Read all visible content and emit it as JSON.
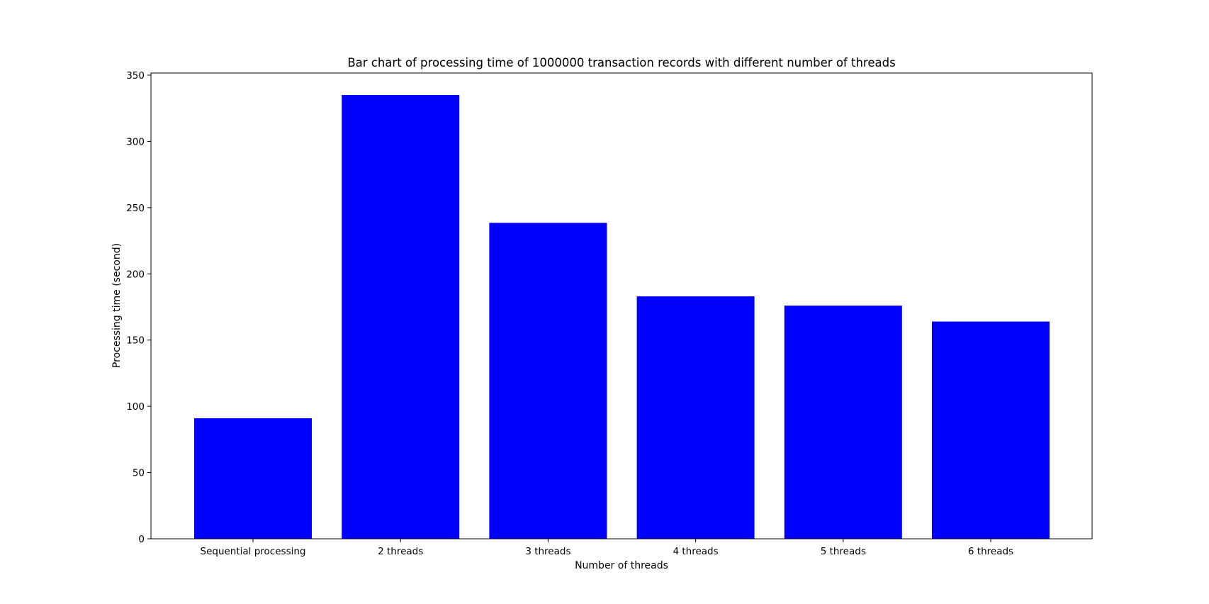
{
  "chart_data": {
    "type": "bar",
    "title": "Bar chart of processing time of 1000000 transaction records with different number of threads",
    "xlabel": "Number of threads",
    "ylabel": "Processing time (second)",
    "categories": [
      "Sequential processing",
      "2 threads",
      "3 threads",
      "4 threads",
      "5 threads",
      "6 threads"
    ],
    "values": [
      91,
      335,
      238.5,
      183,
      176,
      164
    ],
    "ylim": [
      0,
      350
    ],
    "yticks": [
      "0",
      "50",
      "100",
      "150",
      "200",
      "250",
      "300",
      "350"
    ],
    "bar_color": "#0000ff",
    "grid": false,
    "legend": "none"
  }
}
